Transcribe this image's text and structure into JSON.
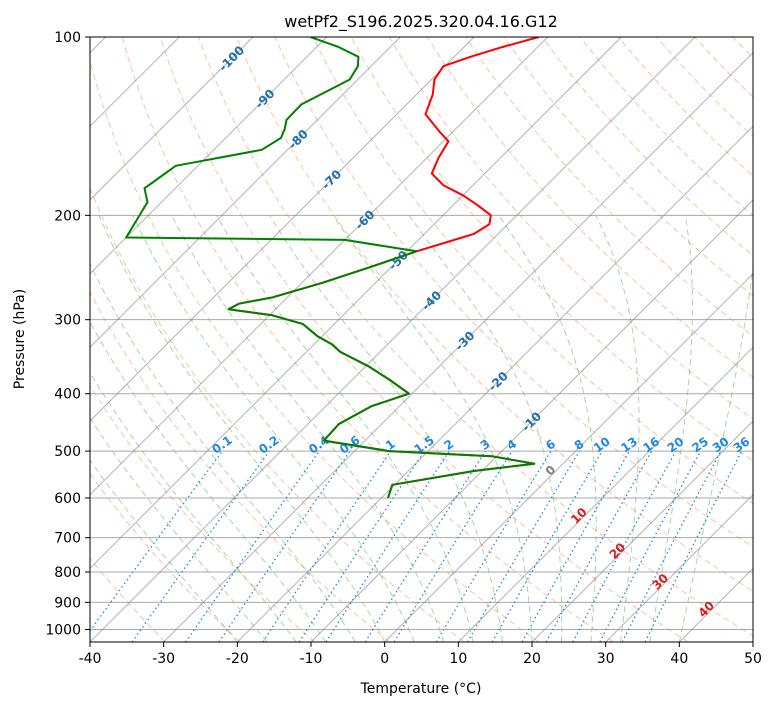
{
  "chart_data": {
    "type": "line",
    "title": "wetPf2_S196.2025.320.04.16.G12",
    "xlabel": "Temperature (°C)",
    "ylabel": "Pressure (hPa)",
    "xlim": [
      -40,
      50
    ],
    "ylim": [
      1050,
      100
    ],
    "y_scale": "log",
    "x_ticks": [
      -40,
      -30,
      -20,
      -10,
      0,
      10,
      20,
      30,
      40,
      50
    ],
    "y_ticks": [
      100,
      200,
      300,
      400,
      500,
      600,
      700,
      800,
      900,
      1000
    ],
    "grid": true,
    "skew_degrees": 45,
    "series": [
      {
        "name": "temperature",
        "color": "#ff0000",
        "p": [
          600,
          570,
          540,
          525,
          510,
          500,
          480,
          450,
          420,
          400,
          380,
          360,
          340,
          330,
          320,
          305,
          295,
          288,
          282,
          275,
          260,
          245,
          230,
          215,
          207,
          200,
          192,
          185,
          178,
          170,
          160,
          150,
          145,
          135,
          125,
          118,
          112,
          108,
          104,
          100
        ],
        "t": [
          -19.1,
          -20.3,
          -11.0,
          -3.9,
          -10.7,
          -25.3,
          -35.6,
          -35.8,
          -33.8,
          -30.4,
          -34.7,
          -39.5,
          -45.4,
          -47.6,
          -50.6,
          -54.3,
          -59.6,
          -66.4,
          -65.7,
          -62.0,
          -57.2,
          -53.0,
          -48.7,
          -43.3,
          -42.5,
          -43.5,
          -46.8,
          -50.0,
          -54.0,
          -57.2,
          -58.4,
          -59.3,
          -61.6,
          -66.1,
          -67.8,
          -69.6,
          -70.2,
          -67.8,
          -64.8,
          -61.2
        ]
      },
      {
        "name": "dewpoint",
        "color": "#008000",
        "p": [
          600,
          570,
          540,
          525,
          510,
          500,
          480,
          450,
          420,
          400,
          380,
          360,
          340,
          330,
          320,
          305,
          295,
          288,
          282,
          275,
          260,
          245,
          230,
          220,
          218,
          190,
          180,
          175,
          165,
          155,
          148,
          143,
          138,
          130,
          118,
          112,
          108,
          104,
          100
        ],
        "t": [
          -19.1,
          -20.3,
          -11.0,
          -3.9,
          -10.7,
          -25.3,
          -35.6,
          -35.8,
          -33.8,
          -30.4,
          -34.7,
          -39.5,
          -45.4,
          -47.6,
          -50.6,
          -54.3,
          -59.6,
          -66.4,
          -65.7,
          -62.0,
          -57.2,
          -53.0,
          -48.7,
          -60.0,
          -90.0,
          -91.9,
          -94.2,
          -93.8,
          -93.0,
          -83.5,
          -82.5,
          -83.2,
          -84.2,
          -84.3,
          -81.1,
          -81.8,
          -83.0,
          -87.0,
          -92.2
        ]
      }
    ],
    "isotherm_labels": [
      -100,
      -90,
      -80,
      -70,
      -60,
      -50,
      -40,
      -30,
      -20,
      -10
    ],
    "mixing_ratio_labels": [
      "0.1",
      "0.2",
      "0.4",
      "0.6",
      "1",
      "1.5",
      "2",
      "3",
      "4",
      "6",
      "8",
      "10",
      "13",
      "16",
      "20",
      "25",
      "30",
      "36"
    ],
    "mixing_ratio_values": [
      0.1,
      0.2,
      0.4,
      0.6,
      1,
      1.5,
      2,
      3,
      4,
      6,
      8,
      10,
      13,
      16,
      20,
      25,
      30,
      36
    ],
    "warm_isotherm_labels": [
      "0",
      "10",
      "20",
      "30",
      "40"
    ],
    "colors": {
      "dry_adiabat": "#ff8050",
      "moist_adiabat": "#4caf50",
      "mixing_ratio": "#1e88e5",
      "isotherm_label": "#1f6fa8",
      "warm_label": "#d62020",
      "zero_label": "#808080",
      "grid": "#a9a9a9",
      "isobar": "#a9a9a9",
      "isotherm_line": "#808080",
      "frame": "#000000"
    }
  }
}
